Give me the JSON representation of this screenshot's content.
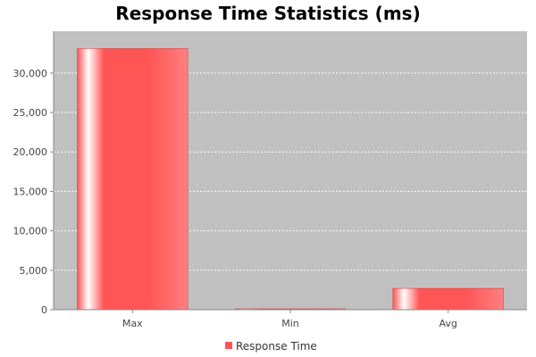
{
  "chart_data": {
    "type": "bar",
    "title": "Response Time Statistics (ms)",
    "xlabel": "",
    "ylabel": "",
    "categories": [
      "Max",
      "Min",
      "Avg"
    ],
    "series": [
      {
        "name": "Response Time",
        "values": [
          33100,
          60,
          2700
        ],
        "color": "#ff5555"
      }
    ],
    "ylim": [
      0,
      35300
    ],
    "yticks": [
      0,
      5000,
      10000,
      15000,
      20000,
      25000,
      30000
    ],
    "ytick_labels": [
      "0",
      "5,000",
      "10,000",
      "15,000",
      "20,000",
      "25,000",
      "30,000"
    ],
    "grid": true,
    "plot_background": "#c0c0c0",
    "legend_position": "bottom"
  }
}
